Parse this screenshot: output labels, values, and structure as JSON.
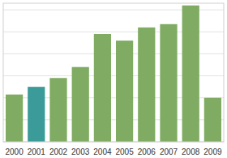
{
  "chart_data": {
    "type": "bar",
    "categories": [
      "2000",
      "2001",
      "2002",
      "2003",
      "2004",
      "2005",
      "2006",
      "2007",
      "2008",
      "2009"
    ],
    "values": [
      2.15,
      2.5,
      2.9,
      3.4,
      4.9,
      4.6,
      5.2,
      5.35,
      6.2,
      2.0
    ],
    "colors": [
      "#7fab62",
      "#3b9b98",
      "#7fab62",
      "#7fab62",
      "#7fab62",
      "#7fab62",
      "#7fab62",
      "#7fab62",
      "#7fab62",
      "#7fab62"
    ],
    "ylim": [
      0,
      6.3
    ],
    "yticks": [
      0,
      1,
      2,
      3,
      4,
      5,
      6
    ],
    "grid": true,
    "tick_labels": "x"
  }
}
